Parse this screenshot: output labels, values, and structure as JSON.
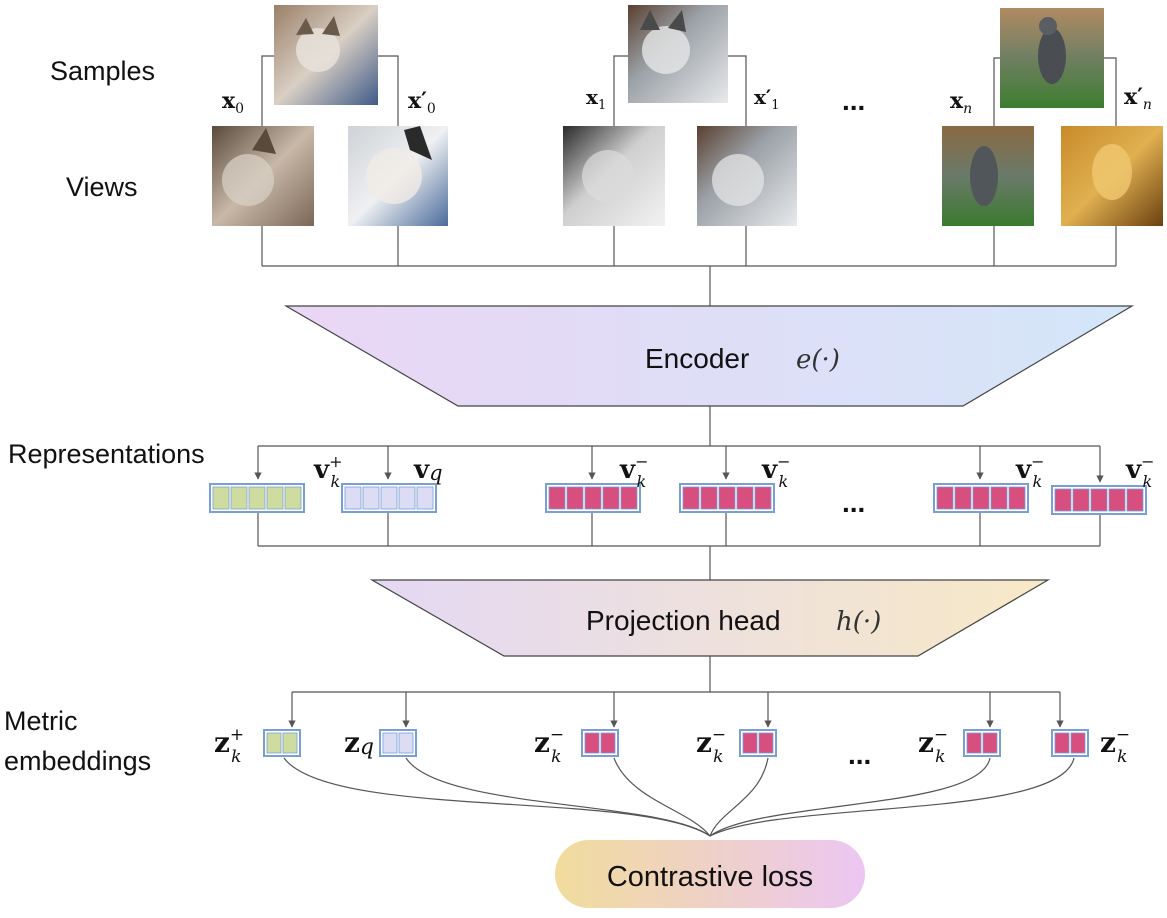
{
  "labels": {
    "samples": "Samples",
    "views": "Views",
    "representations": "Representations",
    "metric_line1": "Metric",
    "metric_line2": "embeddings"
  },
  "blocks": {
    "encoder_name": "Encoder",
    "encoder_fn": "e(·)",
    "projection_name": "Projection head",
    "projection_fn": "h(·)",
    "loss": "Contrastive loss"
  },
  "symbols": {
    "x0": "x",
    "x0_sub": "0",
    "x0p": "x′",
    "x0p_sub": "0",
    "x1": "x",
    "x1_sub": "1",
    "x1p": "x′",
    "x1p_sub": "1",
    "xn": "x",
    "xn_sub": "n",
    "xnp": "x′",
    "xnp_sub": "n",
    "ellipsis": "..."
  },
  "representations": [
    {
      "base": "v",
      "sup": "+",
      "sub": "k",
      "kind": "positive"
    },
    {
      "base": "v",
      "sup": "",
      "sub": "q",
      "kind": "query"
    },
    {
      "base": "v",
      "sup": "−",
      "sub": "k",
      "kind": "negative"
    },
    {
      "base": "v",
      "sup": "−",
      "sub": "k",
      "kind": "negative"
    },
    {
      "base": "v",
      "sup": "−",
      "sub": "k",
      "kind": "negative"
    },
    {
      "base": "v",
      "sup": "−",
      "sub": "k",
      "kind": "negative"
    }
  ],
  "embeddings": [
    {
      "base": "z",
      "sup": "+",
      "sub": "k",
      "kind": "positive"
    },
    {
      "base": "z",
      "sup": "",
      "sub": "q",
      "kind": "query"
    },
    {
      "base": "z",
      "sup": "−",
      "sub": "k",
      "kind": "negative"
    },
    {
      "base": "z",
      "sup": "−",
      "sub": "k",
      "kind": "negative"
    },
    {
      "base": "z",
      "sup": "−",
      "sub": "k",
      "kind": "negative"
    },
    {
      "base": "z",
      "sup": "−",
      "sub": "k",
      "kind": "negative"
    }
  ],
  "colors": {
    "positive_fill": "#cfdca0",
    "query_fill": "#dcdcf4",
    "negative_fill": "#d64f7e",
    "cell_border": "#7a9fd6",
    "line": "#555555",
    "encoder_left": "#e8d6f4",
    "encoder_right": "#d6e6f8",
    "projection_left": "#e6d8f4",
    "projection_right": "#f6e8c8",
    "loss_left": "#f0dca0",
    "loss_right": "#ecc8f0"
  }
}
